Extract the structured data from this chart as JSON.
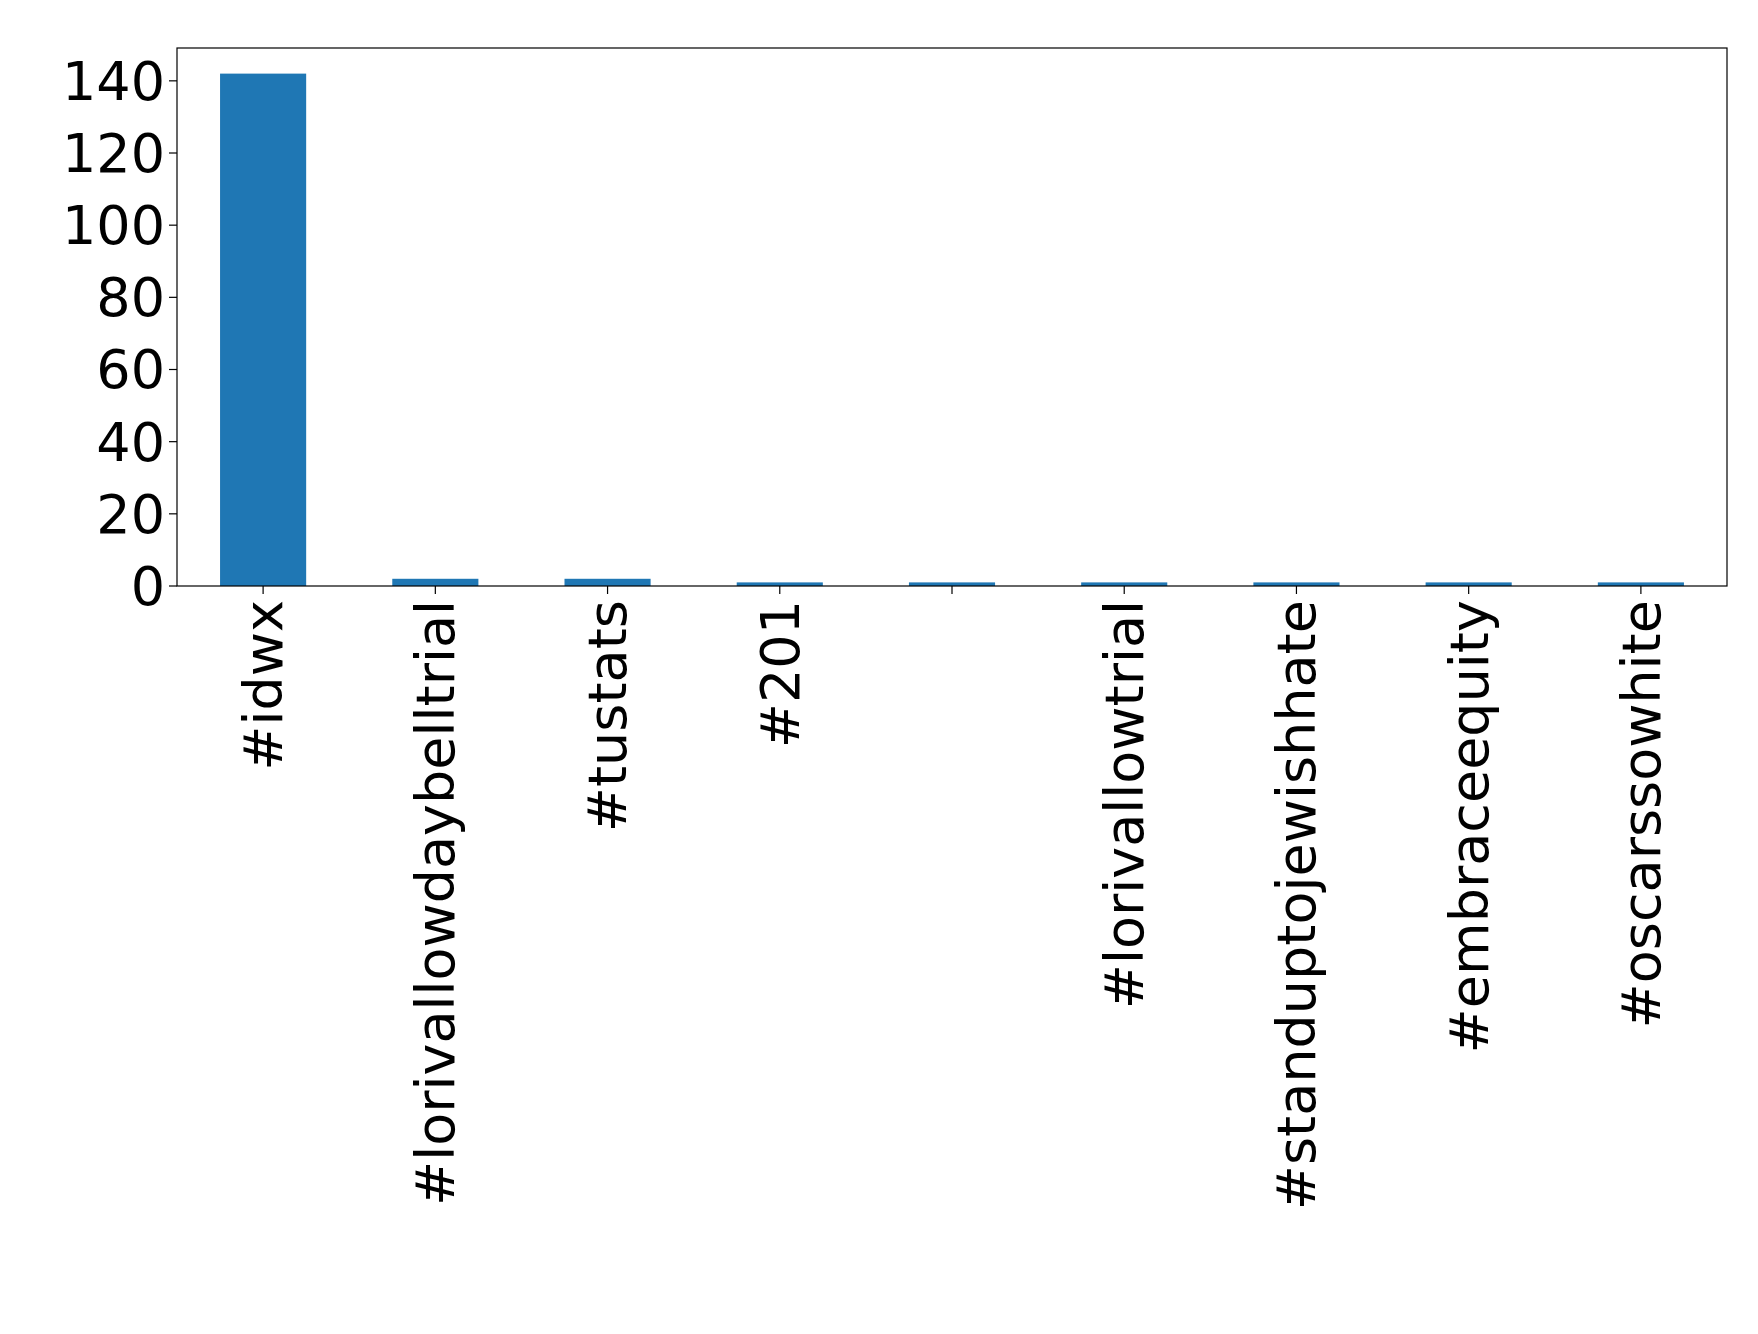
{
  "chart_data": {
    "type": "bar",
    "categories": [
      "#idwx",
      "#lorivallowdaybelltrial",
      "#tustats",
      "#201",
      null,
      "#lorivallowtrial",
      "#standuptojewishhate",
      "#embraceequity",
      "#oscarssowhite"
    ],
    "values": [
      142,
      2,
      2,
      1,
      1,
      1,
      1,
      1,
      1
    ],
    "color": "#1f77b4",
    "ylim": [
      0,
      149.1
    ],
    "yticks": [
      0,
      20,
      40,
      60,
      80,
      100,
      120,
      140
    ],
    "grid": false
  }
}
